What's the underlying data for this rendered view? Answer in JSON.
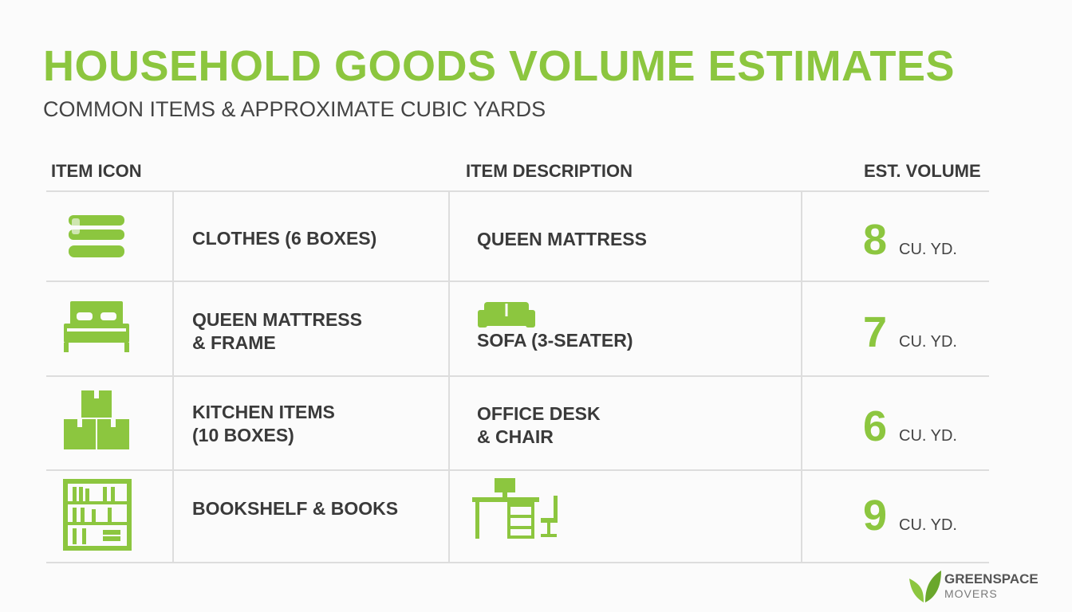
{
  "header": {
    "title": "HOUSEHOLD GOODS VOLUME ESTIMATES",
    "subtitle": "COMMON ITEMS & APPROXIMATE CUBIC YARDS"
  },
  "table": {
    "columns": [
      "ITEM ICON",
      "ITEM DESCRIPTION",
      "EST. VOLUME"
    ],
    "rows": [
      {
        "item": [
          "CLOTHES (6 BOXES)"
        ],
        "description": [
          "QUEEN MATTRESS"
        ],
        "volume": 8,
        "unit": "CU. YD."
      },
      {
        "item": [
          "QUEEN MATTRESS",
          "& FRAME"
        ],
        "description": [
          "SOFA (3-SEATER)"
        ],
        "volume": 7,
        "unit": "CU. YD."
      },
      {
        "item": [
          "KITCHEN ITEMS",
          "(10 BOXES)"
        ],
        "description": [
          "OFFICE DESK",
          "& CHAIR"
        ],
        "volume": 6,
        "unit": "CU. YD."
      },
      {
        "item": [
          "BOOKSHELF & BOOKS"
        ],
        "description": [],
        "volume": 9,
        "unit": "CU. YD."
      }
    ]
  },
  "logo": {
    "name": "GREENSPACE",
    "tagline": "MOVERS"
  }
}
